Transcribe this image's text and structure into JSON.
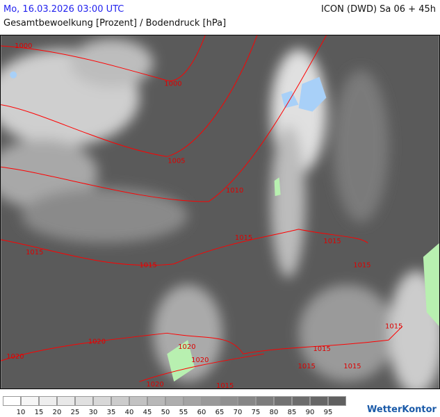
{
  "header": {
    "datetime": "Mo, 16.03.2026 03:00 UTC",
    "model": "ICON (DWD) Sa 06 + 45h",
    "parameter": "Gesamtbewoelkung [Prozent] / Bodendruck [hPa]"
  },
  "colors": {
    "datetime": "#2222ee",
    "isobar": "#ff0000",
    "background": "#5a5a5a",
    "low_cloud_green": "#b8f0b0",
    "water": "#a8d0f8"
  },
  "isobar_labels": [
    {
      "text": "1000"
    },
    {
      "text": "1000"
    },
    {
      "text": "1005"
    },
    {
      "text": "1010"
    },
    {
      "text": "1015"
    },
    {
      "text": "1015"
    },
    {
      "text": "1015"
    },
    {
      "text": "1015"
    },
    {
      "text": "1015"
    },
    {
      "text": "1015"
    },
    {
      "text": "1020"
    },
    {
      "text": "1020"
    },
    {
      "text": "1020"
    },
    {
      "text": "1020"
    },
    {
      "text": "1020"
    },
    {
      "text": "1015"
    },
    {
      "text": "1015"
    },
    {
      "text": "1015"
    },
    {
      "text": "1015"
    }
  ],
  "legend": {
    "labels": [
      "10",
      "15",
      "20",
      "25",
      "30",
      "35",
      "40",
      "45",
      "50",
      "55",
      "60",
      "65",
      "70",
      "75",
      "80",
      "85",
      "90",
      "95"
    ],
    "colors": [
      "#ffffff",
      "#f6f6f6",
      "#eeeeee",
      "#e8e8e8",
      "#e0e0e0",
      "#d8d8d8",
      "#cccccc",
      "#c2c2c2",
      "#b8b8b8",
      "#aeaeae",
      "#a4a4a4",
      "#9a9a9a",
      "#909090",
      "#868686",
      "#7c7c7c",
      "#727272",
      "#6c6c6c",
      "#666666",
      "#606060"
    ]
  },
  "logo": "WetterKontor"
}
